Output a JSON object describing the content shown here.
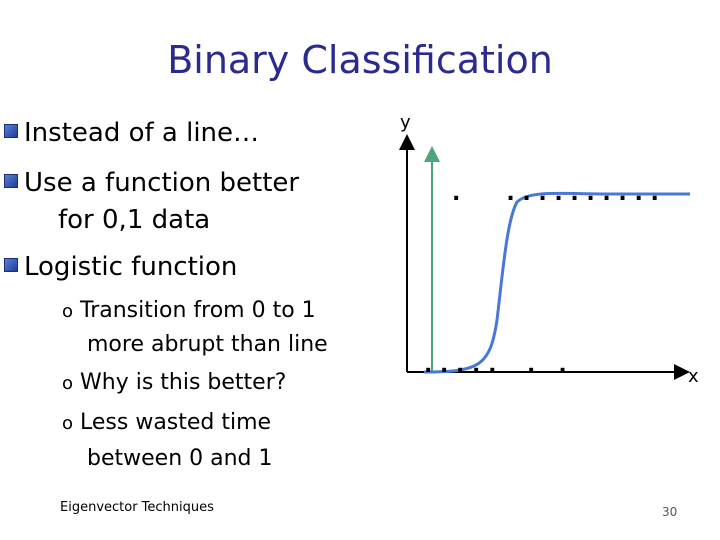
{
  "slide": {
    "title": "Binary Classification",
    "bullets": [
      {
        "text": "Instead of a line…"
      },
      {
        "text": "Use a function better"
      },
      {
        "text": "for 0,1 data"
      },
      {
        "text": "Logistic function"
      }
    ],
    "sub_bullets": [
      {
        "text": "Transition from 0 to 1"
      },
      {
        "text": "more abrupt than line"
      },
      {
        "text": "Why is this better?"
      },
      {
        "text": "Less wasted time"
      },
      {
        "text": "between 0 and 1"
      }
    ],
    "sub_marker": "o",
    "footer": "Eigenvector Techniques",
    "page_number": "30"
  },
  "figure": {
    "y_label": "y",
    "x_label": "x",
    "top_dots": ".      . . . . . . . . . .",
    "bottom_dots": ". . . . .    .   ."
  },
  "colors": {
    "title": "#2b2b8f",
    "curve": "#4a78d6",
    "arrow_green": "#4fa37a"
  }
}
